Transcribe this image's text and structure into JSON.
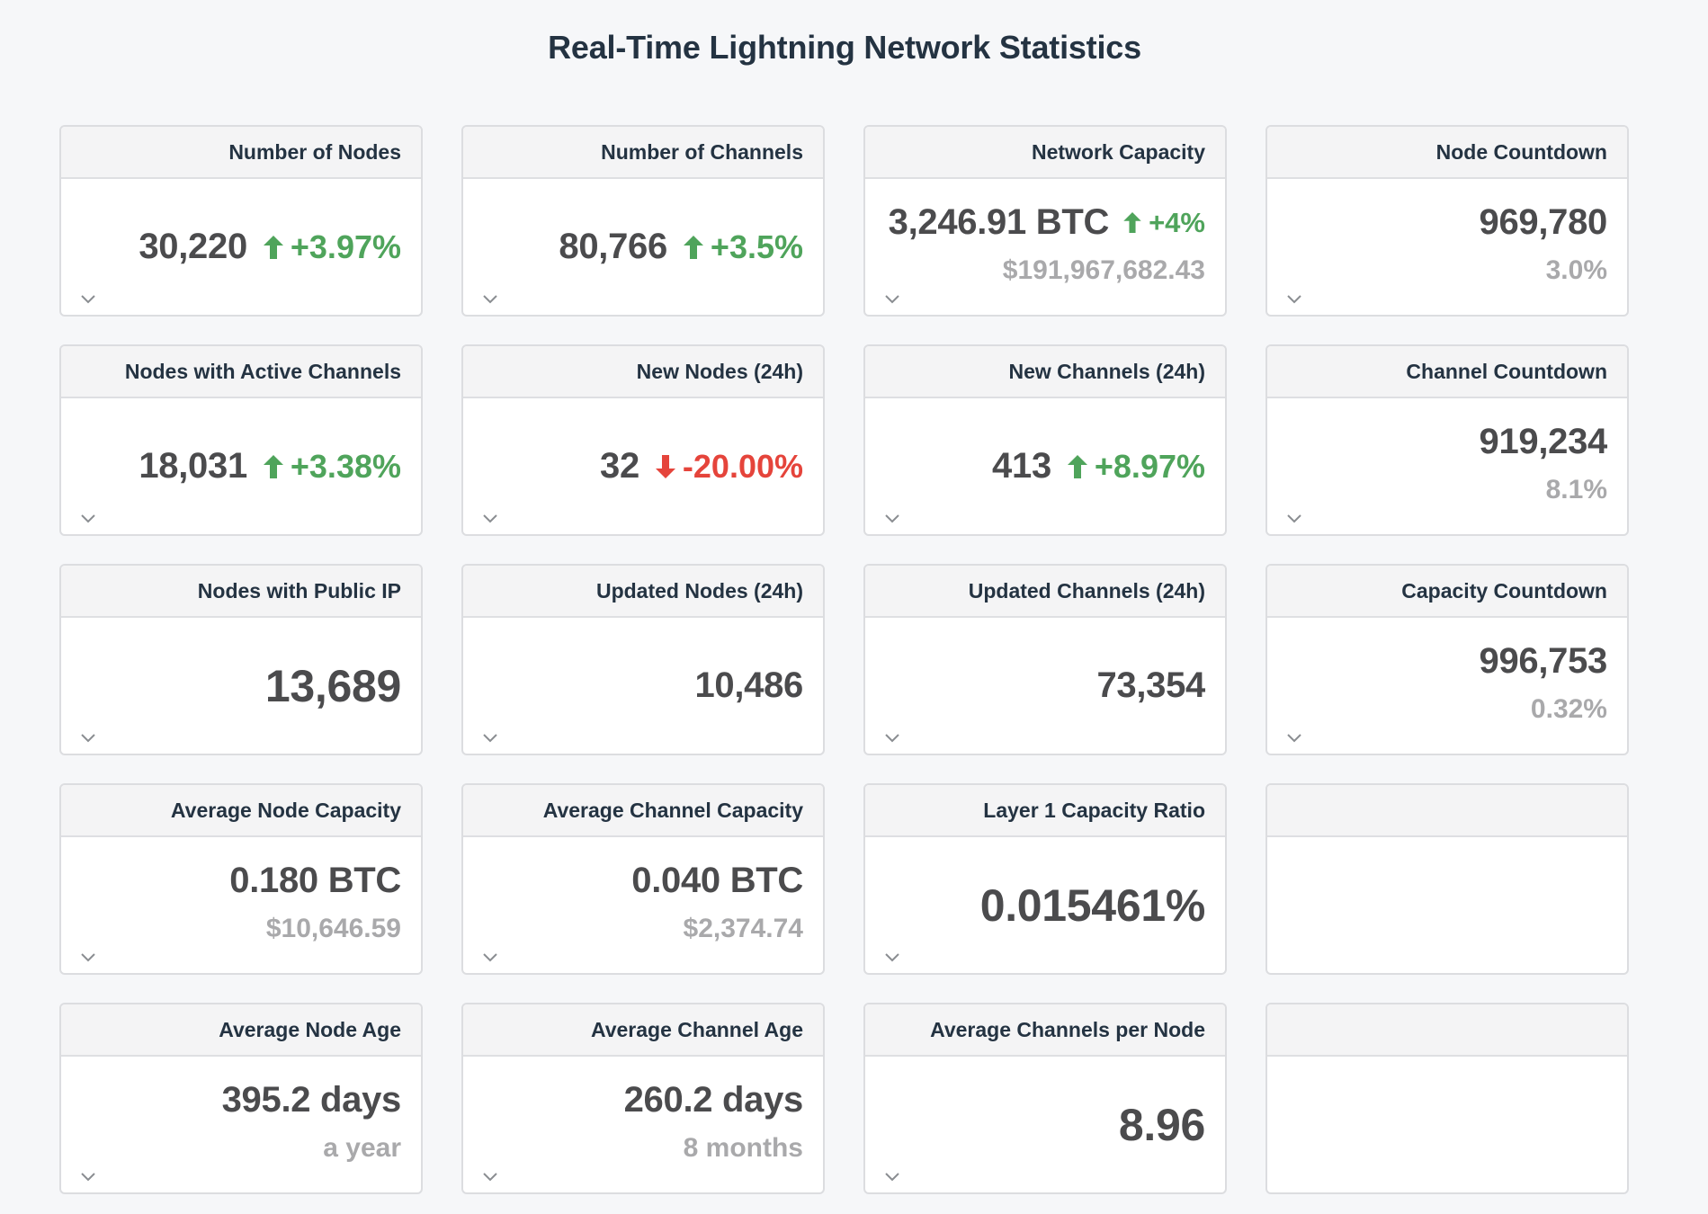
{
  "page": {
    "title": "Real-Time Lightning Network Statistics"
  },
  "colors": {
    "up": "#4fa45b",
    "down": "#e5443b",
    "muted": "#a9a9ab",
    "heading": "#243342"
  },
  "cards": {
    "nodes": {
      "title": "Number of Nodes",
      "value": "30,220",
      "change": "+3.97%",
      "trend_icon": "arrow-up-icon"
    },
    "channels": {
      "title": "Number of Channels",
      "value": "80,766",
      "change": "+3.5%",
      "trend_icon": "arrow-up-icon"
    },
    "capacity": {
      "title": "Network Capacity",
      "value": "3,246.91 BTC",
      "change": "+4%",
      "sub": "$191,967,682.43",
      "trend_icon": "arrow-up-icon"
    },
    "node_countdown": {
      "title": "Node Countdown",
      "value": "969,780",
      "sub": "3.0%"
    },
    "active_nodes": {
      "title": "Nodes with Active Channels",
      "value": "18,031",
      "change": "+3.38%",
      "trend_icon": "arrow-up-icon"
    },
    "new_nodes": {
      "title": "New Nodes (24h)",
      "value": "32",
      "change": "-20.00%",
      "trend_icon": "arrow-down-icon"
    },
    "new_channels": {
      "title": "New Channels (24h)",
      "value": "413",
      "change": "+8.97%",
      "trend_icon": "arrow-up-icon"
    },
    "channel_countdown": {
      "title": "Channel Countdown",
      "value": "919,234",
      "sub": "8.1%"
    },
    "public_ip": {
      "title": "Nodes with Public IP",
      "value": "13,689"
    },
    "updated_nodes": {
      "title": "Updated Nodes (24h)",
      "value": "10,486"
    },
    "updated_channels": {
      "title": "Updated Channels (24h)",
      "value": "73,354"
    },
    "capacity_countdown": {
      "title": "Capacity Countdown",
      "value": "996,753",
      "sub": "0.32%"
    },
    "avg_node_capacity": {
      "title": "Average Node Capacity",
      "value": "0.180 BTC",
      "sub": "$10,646.59"
    },
    "avg_channel_capacity": {
      "title": "Average Channel Capacity",
      "value": "0.040 BTC",
      "sub": "$2,374.74"
    },
    "l1_ratio": {
      "title": "Layer 1 Capacity Ratio",
      "value": "0.015461%"
    },
    "empty_1": {
      "title": ""
    },
    "avg_node_age": {
      "title": "Average Node Age",
      "value": "395.2 days",
      "sub": "a year"
    },
    "avg_channel_age": {
      "title": "Average Channel Age",
      "value": "260.2 days",
      "sub": "8 months"
    },
    "avg_channels_per_node": {
      "title": "Average Channels per Node",
      "value": "8.96"
    },
    "empty_2": {
      "title": ""
    }
  },
  "icons": {
    "expand": "chevron-down-icon",
    "up": "arrow-up-icon",
    "down": "arrow-down-icon"
  }
}
